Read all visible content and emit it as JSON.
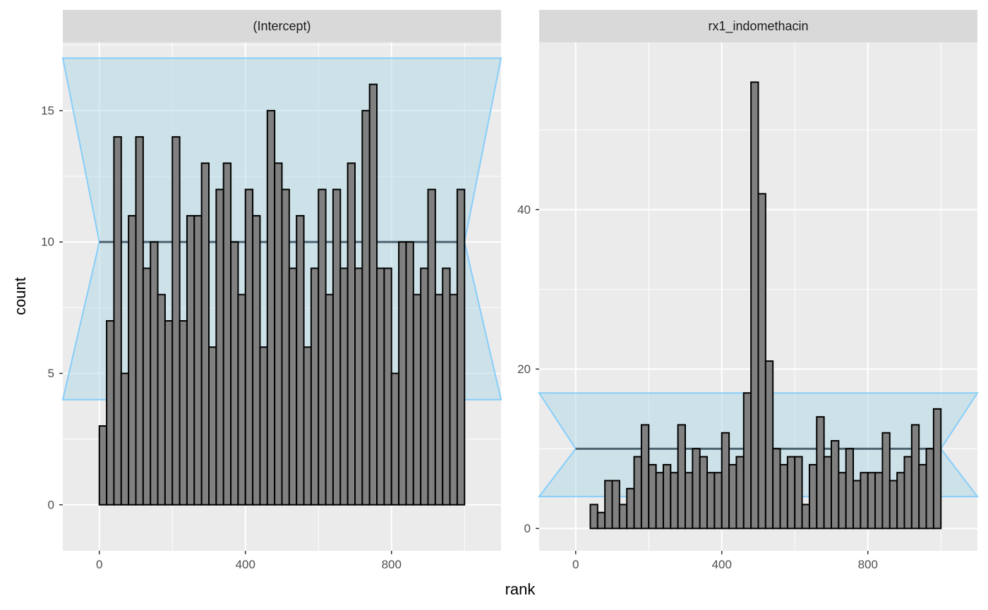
{
  "chart_data": {
    "type": "bar",
    "xlabel": "rank",
    "ylabel": "count",
    "colors": {
      "panel_background": "#ebebeb",
      "strip_background": "#d9d9d9",
      "grid": "#ffffff",
      "bar_fill": "#808080",
      "bar_stroke": "#000000",
      "band_fill": "#add8e6",
      "band_stroke": "#87cefa",
      "mean_line": "#4d6470"
    },
    "bin_width": 20,
    "panels": [
      {
        "title": "(Intercept)",
        "xlim": [
          -100,
          1100
        ],
        "ylim": [
          -1.75,
          17.6
        ],
        "x_ticks": [
          0,
          400,
          800
        ],
        "y_ticks": [
          0,
          5,
          10,
          15
        ],
        "x_tick_labels": [
          "0",
          "400",
          "800"
        ],
        "y_tick_labels": [
          "0",
          "5",
          "10",
          "15"
        ],
        "band": {
          "x_range": [
            -100,
            1100
          ],
          "inner_x": [
            0,
            1000
          ],
          "lower": 4,
          "mid": 10,
          "upper": 17
        },
        "x_start": 0,
        "counts": [
          3,
          7,
          14,
          5,
          11,
          14,
          9,
          10,
          8,
          7,
          14,
          7,
          11,
          11,
          13,
          6,
          12,
          13,
          10,
          8,
          12,
          11,
          6,
          15,
          13,
          12,
          9,
          11,
          6,
          9,
          12,
          8,
          12,
          9,
          13,
          9,
          15,
          16,
          9,
          9,
          5,
          10,
          10,
          8,
          9,
          12,
          8,
          9,
          8,
          12
        ]
      },
      {
        "title": "rx1_indomethacin",
        "xlim": [
          -100,
          1100
        ],
        "ylim": [
          -2.8,
          61.0
        ],
        "x_ticks": [
          0,
          400,
          800
        ],
        "y_ticks": [
          0,
          20,
          40
        ],
        "x_tick_labels": [
          "0",
          "400",
          "800"
        ],
        "y_tick_labels": [
          "0",
          "20",
          "40"
        ],
        "band": {
          "x_range": [
            -100,
            1100
          ],
          "inner_x": [
            0,
            1000
          ],
          "lower": 4,
          "mid": 10,
          "upper": 17
        },
        "x_start": 0,
        "counts": [
          0,
          0,
          3,
          2,
          6,
          6,
          3,
          5,
          9,
          13,
          8,
          7,
          8,
          7,
          13,
          7,
          10,
          9,
          7,
          7,
          12,
          8,
          9,
          17,
          56,
          42,
          21,
          10,
          8,
          9,
          9,
          3,
          8,
          14,
          9,
          11,
          7,
          10,
          6,
          7,
          7,
          7,
          12,
          6,
          7,
          9,
          13,
          8,
          10,
          15
        ]
      }
    ]
  }
}
